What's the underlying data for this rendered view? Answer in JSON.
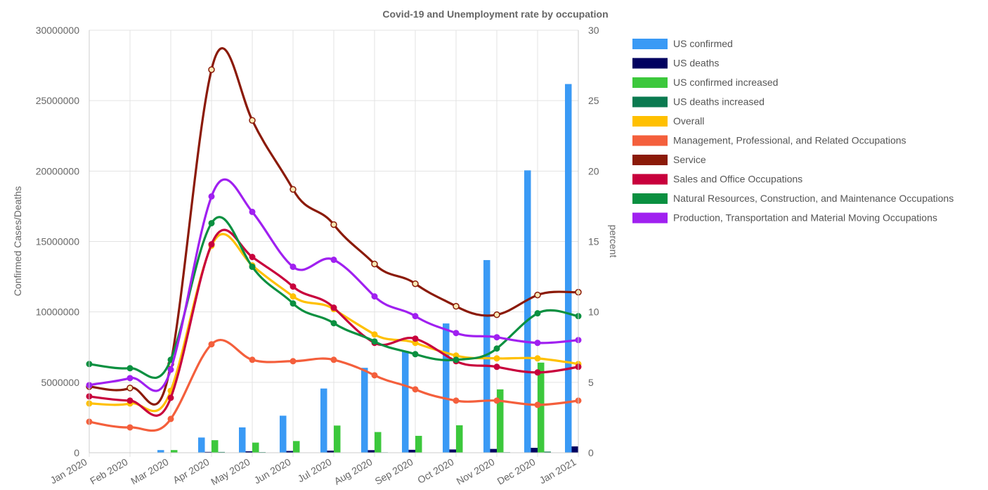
{
  "chart_data": {
    "type": "bar+line",
    "title": "Covid-19  and Unemployment rate by occupation",
    "categories": [
      "Jan 2020",
      "Feb 2020",
      "Mar 2020",
      "Apr 2020",
      "May 2020",
      "Jun 2020",
      "Jul 2020",
      "Aug 2020",
      "Sep 2020",
      "Oct 2020",
      "Nov 2020",
      "Dec 2020",
      "Jan 2021"
    ],
    "y_left": {
      "label": "Confirmed Cases/Deaths",
      "min": 0,
      "max": 30000000,
      "ticks": [
        "0",
        "5000000",
        "10000000",
        "15000000",
        "20000000",
        "25000000",
        "30000000"
      ]
    },
    "y_right": {
      "label": "percent",
      "min": 0,
      "max": 30,
      "ticks": [
        "0",
        "5",
        "10",
        "15",
        "20",
        "25",
        "30"
      ]
    },
    "grid": true,
    "legend_position": "right",
    "bar_series": [
      {
        "name": "US confirmed",
        "color": "#3a9af5",
        "values": [
          0,
          0,
          190000,
          1080000,
          1800000,
          2630000,
          4560000,
          6030000,
          7230000,
          9180000,
          13680000,
          20050000,
          26180000
        ]
      },
      {
        "name": "US deaths",
        "color": "#000060",
        "values": [
          0,
          0,
          4000,
          60000,
          105000,
          127000,
          150000,
          183000,
          208000,
          232000,
          270000,
          350000,
          450000
        ]
      },
      {
        "name": "US confirmed increased",
        "color": "#3cc83c",
        "values": [
          0,
          0,
          190000,
          890000,
          720000,
          830000,
          1930000,
          1470000,
          1200000,
          1950000,
          4500000,
          6400000,
          0
        ]
      },
      {
        "name": "US deaths increased",
        "color": "#0a7a50",
        "values": [
          0,
          0,
          4000,
          56000,
          45000,
          22000,
          23000,
          33000,
          25000,
          24000,
          38000,
          80000,
          0
        ]
      }
    ],
    "line_series": [
      {
        "name": "Overall",
        "color": "#ffc000",
        "values": [
          3.5,
          3.5,
          4.4,
          14.7,
          13.3,
          11.1,
          10.2,
          8.4,
          7.8,
          6.9,
          6.7,
          6.7,
          6.3
        ]
      },
      {
        "name": "Management, Professional, and Related Occupations",
        "color": "#f45f3c",
        "values": [
          2.2,
          1.8,
          2.4,
          7.7,
          6.6,
          6.5,
          6.6,
          5.5,
          4.5,
          3.7,
          3.7,
          3.4,
          3.7
        ]
      },
      {
        "name": "Service",
        "color": "#8b1a08",
        "values": [
          4.7,
          4.6,
          6.3,
          27.2,
          23.6,
          18.7,
          16.2,
          13.4,
          12.0,
          10.4,
          9.8,
          11.2,
          11.4
        ]
      },
      {
        "name": "Sales and Office Occupations",
        "color": "#c8003c",
        "values": [
          4.0,
          3.7,
          3.9,
          14.8,
          13.9,
          11.8,
          10.3,
          7.8,
          8.1,
          6.5,
          6.1,
          5.7,
          6.1
        ]
      },
      {
        "name": "Natural Resources, Construction, and Maintenance Occupations",
        "color": "#0a9040",
        "values": [
          6.3,
          6.0,
          6.6,
          16.3,
          13.2,
          10.6,
          9.2,
          7.9,
          7.0,
          6.6,
          7.4,
          9.9,
          9.7
        ]
      },
      {
        "name": "Production, Transportation and Material Moving Occupations",
        "color": "#a020f0",
        "values": [
          4.8,
          5.3,
          5.9,
          18.2,
          17.1,
          13.2,
          13.7,
          11.1,
          9.7,
          8.5,
          8.2,
          7.8,
          8.0
        ]
      }
    ]
  }
}
